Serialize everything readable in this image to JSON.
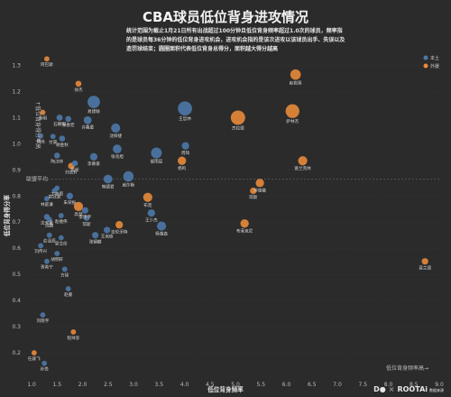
{
  "title": "CBA球员低位背身进攻情况",
  "subtitle": "统计范围为截止1月21日所有出战超过100分钟且低位背身频率超过1.0次的球员，频率指的是球员每36分钟的低位背身进攻机会，进攻机会指的是该次进攻以该球员出手、失误以及造罚球结束；圆圈面积代表低位背身总得分，面积越大得分越高",
  "brand": {
    "left": "D●",
    "right": "ROOTAi",
    "sub": "数据来源"
  },
  "colors": {
    "background": "#2b2b2b",
    "domestic": "#4c78a8",
    "foreign": "#e8893a",
    "grid": "#444444"
  },
  "chart_data": {
    "type": "scatter",
    "title": "CBA球员低位背身进攻情况",
    "xlabel": "低位背身频率",
    "ylabel": "低位背身得分率",
    "x_annotation": "低位背身频率高→",
    "y_annotation": "↑低位背身得分率高",
    "avg_label": "联盟平均",
    "xlim": [
      1.0,
      9.0
    ],
    "ylim": [
      0.1,
      1.35
    ],
    "xticks": [
      "1.0",
      "1.5",
      "2.0",
      "2.5",
      "3.0",
      "3.5",
      "4.0",
      "4.5",
      "5.0",
      "5.5",
      "6.0",
      "6.5",
      "7.0",
      "7.5",
      "8.0",
      "8.5",
      "9.0"
    ],
    "yticks": [
      "0.2",
      "0.3",
      "0.4",
      "0.5",
      "0.6",
      "0.7",
      "0.8",
      "0.9",
      "1.0",
      "1.1",
      "1.2",
      "1.3"
    ],
    "avg_y": 0.865,
    "legend": [
      {
        "label": "本土",
        "key": "domestic"
      },
      {
        "label": "外援",
        "key": "foreign"
      }
    ],
    "legend_position": "top-right",
    "points": [
      {
        "name": "易建联",
        "x": 2.22,
        "y": 1.16,
        "size": 44,
        "group": "domestic"
      },
      {
        "name": "徐杰",
        "x": 1.92,
        "y": 1.23,
        "size": 8,
        "group": "foreign"
      },
      {
        "name": "王哲林",
        "x": 4.01,
        "y": 1.135,
        "size": 58,
        "group": "domestic"
      },
      {
        "name": "赵岩昊",
        "x": 6.18,
        "y": 1.265,
        "size": 30,
        "group": "foreign"
      },
      {
        "name": "萨林杰",
        "x": 6.12,
        "y": 1.125,
        "size": 55,
        "group": "foreign"
      },
      {
        "name": "杰拉德",
        "x": 5.05,
        "y": 1.1,
        "size": 60,
        "group": "foreign"
      },
      {
        "name": "阿巴斯",
        "x": 1.3,
        "y": 1.325,
        "size": 6,
        "group": "foreign"
      },
      {
        "name": "朱明",
        "x": 1.22,
        "y": 1.12,
        "size": 6,
        "group": "foreign"
      },
      {
        "name": "石朝阳",
        "x": 1.55,
        "y": 1.1,
        "size": 9,
        "group": "domestic"
      },
      {
        "name": "张春宏",
        "x": 1.72,
        "y": 1.095,
        "size": 8,
        "group": "domestic"
      },
      {
        "name": "许鑫童",
        "x": 2.1,
        "y": 1.09,
        "size": 16,
        "group": "domestic"
      },
      {
        "name": "沈梓捷",
        "x": 2.65,
        "y": 1.06,
        "size": 22,
        "group": "domestic"
      },
      {
        "name": "张兆旭",
        "x": 2.68,
        "y": 0.98,
        "size": 20,
        "group": "domestic"
      },
      {
        "name": "周琦",
        "x": 4.02,
        "y": 0.992,
        "size": 14,
        "group": "domestic"
      },
      {
        "name": "付豪",
        "x": 1.42,
        "y": 1.028,
        "size": 6,
        "group": "domestic"
      },
      {
        "name": "胡金秋",
        "x": 1.6,
        "y": 1.02,
        "size": 8,
        "group": "domestic"
      },
      {
        "name": "马尚",
        "x": 1.18,
        "y": 1.03,
        "size": 6,
        "group": "domestic"
      },
      {
        "name": "邹雨宸",
        "x": 3.45,
        "y": 0.965,
        "size": 32,
        "group": "domestic"
      },
      {
        "name": "杨鸣",
        "x": 3.95,
        "y": 0.935,
        "size": 18,
        "group": "foreign"
      },
      {
        "name": "富兰克林",
        "x": 6.32,
        "y": 0.935,
        "size": 22,
        "group": "foreign"
      },
      {
        "name": "威尔斯",
        "x": 2.9,
        "y": 0.875,
        "size": 30,
        "group": "domestic"
      },
      {
        "name": "韩德君",
        "x": 2.5,
        "y": 0.865,
        "size": 20,
        "group": "domestic"
      },
      {
        "name": "刘志轩",
        "x": 1.78,
        "y": 0.915,
        "size": 10,
        "group": "foreign"
      },
      {
        "name": "李慕豪",
        "x": 2.22,
        "y": 0.95,
        "size": 14,
        "group": "domestic"
      },
      {
        "name": "陶汉林",
        "x": 1.5,
        "y": 0.955,
        "size": 8,
        "group": "domestic"
      },
      {
        "name": "吴前",
        "x": 1.85,
        "y": 0.925,
        "size": 8,
        "group": "domestic"
      },
      {
        "name": "孙铭徽",
        "x": 5.48,
        "y": 0.85,
        "size": 18,
        "group": "foreign"
      },
      {
        "name": "琼斯",
        "x": 5.35,
        "y": 0.82,
        "size": 10,
        "group": "foreign"
      },
      {
        "name": "布克",
        "x": 3.28,
        "y": 0.795,
        "size": 22,
        "group": "foreign"
      },
      {
        "name": "朱荣振",
        "x": 1.75,
        "y": 0.8,
        "size": 10,
        "group": "domestic"
      },
      {
        "name": "高登",
        "x": 1.92,
        "y": 0.76,
        "size": 22,
        "group": "foreign"
      },
      {
        "name": "曾冠源",
        "x": 1.45,
        "y": 0.82,
        "size": 6,
        "group": "domestic"
      },
      {
        "name": "丁彦雨",
        "x": 1.5,
        "y": 0.83,
        "size": 6,
        "group": "domestic"
      },
      {
        "name": "林庭谦",
        "x": 1.3,
        "y": 0.79,
        "size": 6,
        "group": "domestic"
      },
      {
        "name": "李原宇",
        "x": 2.05,
        "y": 0.745,
        "size": 10,
        "group": "domestic"
      },
      {
        "name": "王少杰",
        "x": 3.35,
        "y": 0.735,
        "size": 14,
        "group": "domestic"
      },
      {
        "name": "沈天翼",
        "x": 1.3,
        "y": 0.72,
        "size": 8,
        "group": "domestic"
      },
      {
        "name": "周鹏",
        "x": 1.35,
        "y": 0.71,
        "size": 6,
        "group": "domestic"
      },
      {
        "name": "赵继伟",
        "x": 1.58,
        "y": 0.725,
        "size": 6,
        "group": "domestic"
      },
      {
        "name": "琼斯",
        "x": 2.08,
        "y": 0.715,
        "size": 6,
        "group": "domestic"
      },
      {
        "name": "杨瀚森",
        "x": 3.55,
        "y": 0.685,
        "size": 22,
        "group": "domestic"
      },
      {
        "name": "吉伦沃特",
        "x": 2.72,
        "y": 0.69,
        "size": 14,
        "group": "foreign"
      },
      {
        "name": "布莱克尼",
        "x": 5.18,
        "y": 0.695,
        "size": 18,
        "group": "foreign"
      },
      {
        "name": "王岚嵚",
        "x": 2.48,
        "y": 0.67,
        "size": 10,
        "group": "domestic"
      },
      {
        "name": "张镇麟",
        "x": 2.25,
        "y": 0.65,
        "size": 10,
        "group": "domestic"
      },
      {
        "name": "俞泽辰",
        "x": 1.35,
        "y": 0.65,
        "size": 6,
        "group": "domestic"
      },
      {
        "name": "郭艾伦",
        "x": 1.58,
        "y": 0.64,
        "size": 6,
        "group": "domestic"
      },
      {
        "name": "刘传兴",
        "x": 1.18,
        "y": 0.61,
        "size": 6,
        "group": "domestic"
      },
      {
        "name": "胡明轩",
        "x": 1.5,
        "y": 0.58,
        "size": 6,
        "group": "domestic"
      },
      {
        "name": "莫兰德",
        "x": 8.72,
        "y": 0.55,
        "size": 10,
        "group": "foreign"
      },
      {
        "name": "贺希宁",
        "x": 1.3,
        "y": 0.55,
        "size": 6,
        "group": "domestic"
      },
      {
        "name": "方硕",
        "x": 1.65,
        "y": 0.52,
        "size": 6,
        "group": "domestic"
      },
      {
        "name": "赵睿",
        "x": 1.72,
        "y": 0.445,
        "size": 6,
        "group": "domestic"
      },
      {
        "name": "刘晓宇",
        "x": 1.22,
        "y": 0.345,
        "size": 6,
        "group": "domestic"
      },
      {
        "name": "程帅澎",
        "x": 1.82,
        "y": 0.28,
        "size": 6,
        "group": "foreign"
      },
      {
        "name": "任骏飞",
        "x": 1.05,
        "y": 0.2,
        "size": 6,
        "group": "foreign"
      },
      {
        "name": "孙悦",
        "x": 1.25,
        "y": 0.16,
        "size": 6,
        "group": "domestic"
      }
    ]
  }
}
